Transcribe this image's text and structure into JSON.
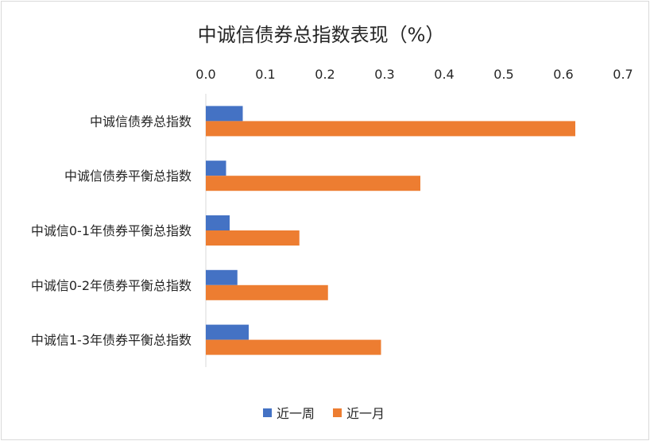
{
  "chart_data": {
    "type": "bar",
    "orientation": "horizontal",
    "title": "中诚信债券总指数表现（%）",
    "categories": [
      "中诚信债券总指数",
      "中诚信债券平衡总指数",
      "中诚信0-1年债券平衡总指数",
      "中诚信0-2年债券平衡总指数",
      "中诚信1-3年债券平衡总指数"
    ],
    "series": [
      {
        "name": "近一周",
        "color": "#4472c4",
        "values": [
          0.062,
          0.034,
          0.04,
          0.053,
          0.072
        ]
      },
      {
        "name": "近一月",
        "color": "#ed7d31",
        "values": [
          0.62,
          0.36,
          0.157,
          0.205,
          0.294
        ]
      }
    ],
    "xlim": [
      0,
      0.7
    ],
    "xticks": [
      "0.0",
      "0.1",
      "0.2",
      "0.3",
      "0.4",
      "0.5",
      "0.6",
      "0.7"
    ],
    "axis_position": "top",
    "grid": false,
    "legend_position": "bottom"
  }
}
